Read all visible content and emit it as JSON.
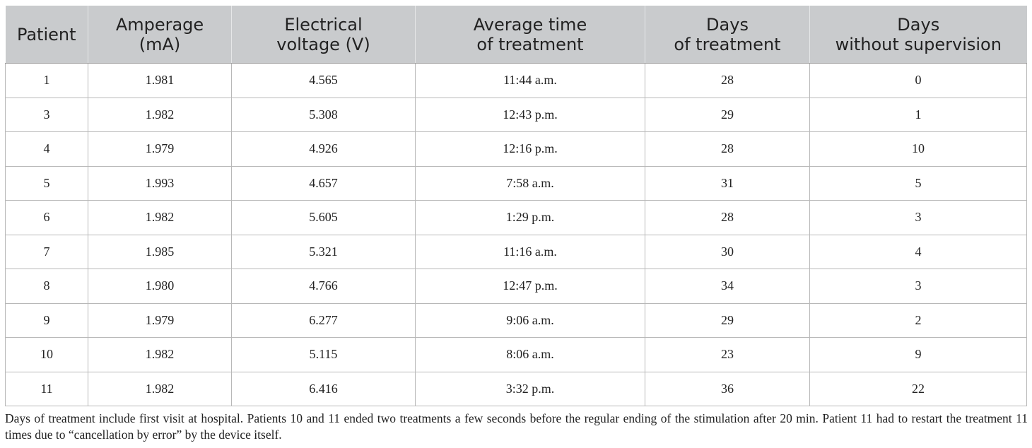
{
  "table": {
    "headers": [
      [
        "Patient"
      ],
      [
        "Amperage",
        "(mA)"
      ],
      [
        "Electrical",
        "voltage (V)"
      ],
      [
        "Average time",
        "of treatment"
      ],
      [
        "Days",
        "of treatment"
      ],
      [
        "Days",
        "without supervision"
      ]
    ],
    "rows": [
      [
        "1",
        "1.981",
        "4.565",
        "11:44 a.m.",
        "28",
        "0"
      ],
      [
        "3",
        "1.982",
        "5.308",
        "12:43 p.m.",
        "29",
        "1"
      ],
      [
        "4",
        "1.979",
        "4.926",
        "12:16 p.m.",
        "28",
        "10"
      ],
      [
        "5",
        "1.993",
        "4.657",
        "7:58 a.m.",
        "31",
        "5"
      ],
      [
        "6",
        "1.982",
        "5.605",
        "1:29 p.m.",
        "28",
        "3"
      ],
      [
        "7",
        "1.985",
        "5.321",
        "11:16 a.m.",
        "30",
        "4"
      ],
      [
        "8",
        "1.980",
        "4.766",
        "12:47 p.m.",
        "34",
        "3"
      ],
      [
        "9",
        "1.979",
        "6.277",
        "9:06 a.m.",
        "29",
        "2"
      ],
      [
        "10",
        "1.982",
        "5.115",
        "8:06 a.m.",
        "23",
        "9"
      ],
      [
        "11",
        "1.982",
        "6.416",
        "3:32 p.m.",
        "36",
        "22"
      ]
    ]
  },
  "footnote": "Days of treatment include first visit at hospital. Patients 10 and 11 ended two treatments a few seconds before the regular ending of the stimulation after 20 min. Patient 11 had to restart the treatment 11 times due to “cancellation by error” by the device itself.",
  "colors": {
    "header_background": "#c9cbcd",
    "grid_line": "#b8b8b8",
    "text": "#222222"
  }
}
